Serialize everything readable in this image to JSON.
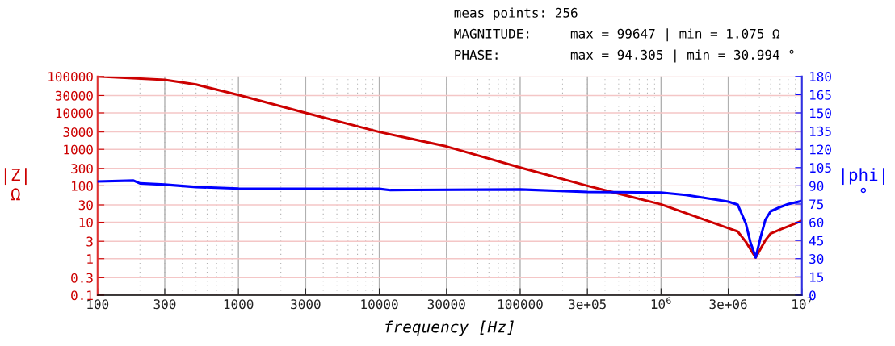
{
  "chart_data": {
    "type": "line",
    "xlabel": "frequency [Hz]",
    "ylabel": "|Z|\nΩ",
    "y2label": "|phi|\n°",
    "log": "xy",
    "grid": true,
    "legend": false,
    "marker": "none",
    "line_style": "solid",
    "annotations": [
      "meas points: 256",
      "MAGNITUDE:     max = 99647 | min = 1.075 Ω",
      "PHASE:         max = 94.305 | min = 30.994 °"
    ],
    "xlim": [
      100,
      10000000
    ],
    "xticks": [
      100,
      300,
      1000,
      3000,
      10000,
      30000,
      100000,
      {
        "value": 300000,
        "label": "3e+05"
      },
      {
        "value": 1000000,
        "label": "10$^{6}$"
      },
      {
        "value": 3000000,
        "label": "3e+06"
      },
      {
        "value": 10000000,
        "label": "10$^{7}$"
      }
    ],
    "ylim": [
      0.1,
      100000
    ],
    "yticks": [
      0.1,
      0.3,
      1,
      3,
      10,
      30,
      100,
      300,
      1000,
      3000,
      10000,
      30000,
      100000
    ],
    "y2lim": [
      0,
      180
    ],
    "y2ticks": [
      0,
      15,
      30,
      45,
      60,
      75,
      90,
      105,
      120,
      135,
      150,
      165,
      180
    ],
    "series": [
      {
        "color": "#cc0000",
        "x": [
          100,
          300,
          500,
          1000,
          3000,
          10000,
          30000,
          100000,
          300000,
          1000000,
          3000000,
          3500000,
          4000000,
          4700000,
          5500000,
          6000000,
          7000000,
          8000000,
          10000000
        ],
        "values": [
          99647,
          81000,
          60000,
          31000,
          10000,
          3000,
          1200,
          316,
          100,
          31,
          6.9,
          5.6,
          2.9,
          1.075,
          3.2,
          4.9,
          6.3,
          7.7,
          11
        ]
      },
      {
        "color": "#0000ff",
        "axis": "y2",
        "x": [
          100,
          180,
          200,
          300,
          500,
          1000,
          3000,
          10000,
          12000,
          100000,
          300000,
          1000000,
          1500000,
          2500000,
          3000000,
          3500000,
          4000000,
          4300000,
          4700000,
          5100000,
          5500000,
          6000000,
          7000000,
          8000000,
          10000000
        ],
        "values": [
          93.6,
          94.3,
          92,
          91,
          89,
          87.7,
          87.5,
          87.5,
          86.5,
          87,
          85,
          84.4,
          82.5,
          78.5,
          77,
          74.5,
          59,
          44,
          31,
          48,
          62,
          69,
          72.5,
          75,
          77.5
        ]
      }
    ]
  }
}
